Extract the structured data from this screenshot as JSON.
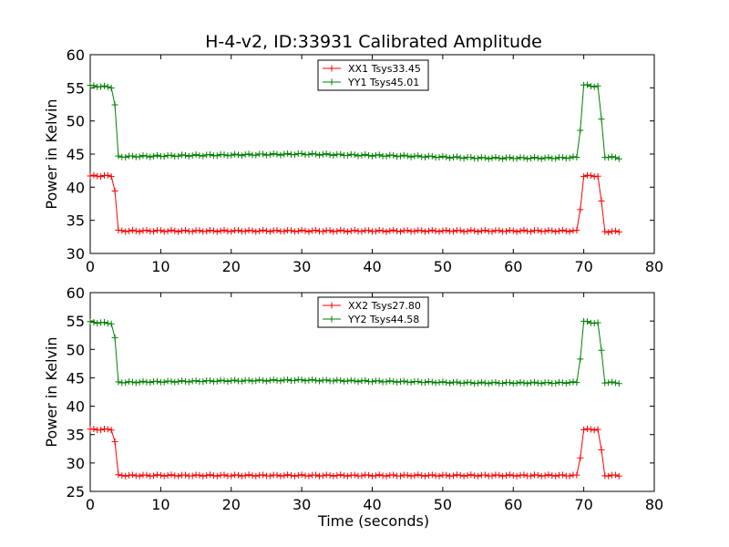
{
  "figure": {
    "title": "H-4-v2, ID:33931 Calibrated Amplitude",
    "xlabel": "Time (seconds)"
  },
  "chart_data": [
    {
      "type": "line",
      "title": "H-4-v2, ID:33931 Calibrated Amplitude",
      "xlabel": "",
      "ylabel": "Power in Kelvin",
      "xlim": [
        0,
        80
      ],
      "ylim": [
        30,
        60
      ],
      "xticks": [
        "0",
        "10",
        "20",
        "30",
        "40",
        "50",
        "60",
        "70",
        "80"
      ],
      "yticks": [
        "30",
        "35",
        "40",
        "45",
        "50",
        "55",
        "60"
      ],
      "legend_location": "top-center",
      "marker": "+",
      "series": [
        {
          "name": "XX1 Tsys33.45",
          "color": "#ff0000",
          "x": [
            0,
            3,
            3.5,
            4,
            69,
            69.5,
            70,
            72,
            72.5,
            73,
            75
          ],
          "y": [
            41.7,
            41.7,
            39.5,
            33.4,
            33.4,
            36.7,
            41.7,
            41.7,
            37.8,
            33.3,
            33.3
          ]
        },
        {
          "name": "YY1 Tsys45.01",
          "color": "#008000",
          "x": [
            0,
            3,
            3.5,
            4,
            15,
            30,
            45,
            55,
            66,
            69,
            69.5,
            70,
            72,
            72.5,
            73,
            75
          ],
          "y": [
            55.3,
            55.1,
            52.4,
            44.6,
            44.8,
            45.0,
            44.7,
            44.4,
            44.4,
            44.5,
            48.7,
            55.4,
            55.2,
            50.2,
            44.6,
            44.4
          ]
        }
      ]
    },
    {
      "type": "line",
      "title": "",
      "xlabel": "Time (seconds)",
      "ylabel": "Power in Kelvin",
      "xlim": [
        0,
        80
      ],
      "ylim": [
        25,
        60
      ],
      "xticks": [
        "0",
        "10",
        "20",
        "30",
        "40",
        "50",
        "60",
        "70",
        "80"
      ],
      "yticks": [
        "25",
        "30",
        "35",
        "40",
        "45",
        "50",
        "55",
        "60"
      ],
      "legend_location": "top-center",
      "marker": "+",
      "series": [
        {
          "name": "XX2 Tsys27.80",
          "color": "#ff0000",
          "x": [
            0,
            3,
            3.5,
            4,
            69,
            69.5,
            70,
            72,
            72.5,
            73,
            75
          ],
          "y": [
            35.9,
            35.9,
            33.8,
            27.8,
            27.8,
            31.0,
            35.9,
            35.9,
            32.2,
            27.8,
            27.8
          ]
        },
        {
          "name": "YY2 Tsys44.58",
          "color": "#008000",
          "x": [
            0,
            3,
            3.5,
            4,
            15,
            30,
            45,
            55,
            66,
            69,
            69.5,
            70,
            72,
            72.5,
            73,
            75
          ],
          "y": [
            54.8,
            54.6,
            52.0,
            44.2,
            44.4,
            44.6,
            44.3,
            44.1,
            44.1,
            44.2,
            48.4,
            54.9,
            54.6,
            49.8,
            44.2,
            44.1
          ]
        }
      ]
    }
  ]
}
